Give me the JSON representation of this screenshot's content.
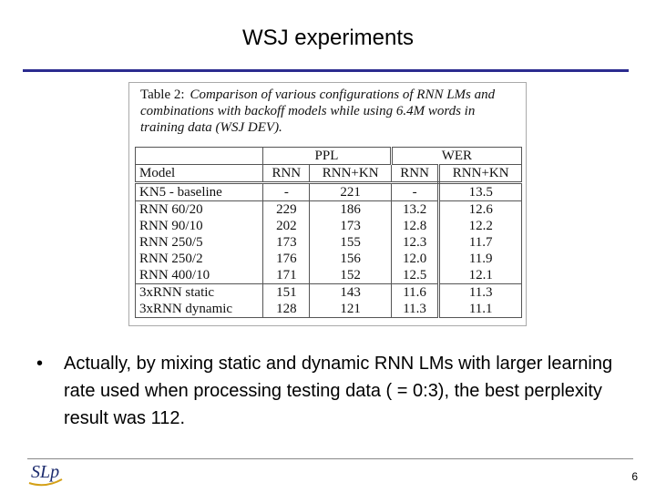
{
  "header": {
    "title": "WSJ experiments"
  },
  "table": {
    "caption_label": "Table 2:",
    "caption": "Comparison of various configurations of RNN LMs and combinations with backoff models while using 6.4M words in training data (WSJ DEV).",
    "groups": [
      "PPL",
      "WER"
    ],
    "columns": [
      "Model",
      "RNN",
      "RNN+KN",
      "RNN",
      "RNN+KN"
    ],
    "rows": [
      [
        "KN5 - baseline",
        "-",
        "221",
        "-",
        "13.5"
      ],
      [
        "RNN 60/20",
        "229",
        "186",
        "13.2",
        "12.6"
      ],
      [
        "RNN 90/10",
        "202",
        "173",
        "12.8",
        "12.2"
      ],
      [
        "RNN 250/5",
        "173",
        "155",
        "12.3",
        "11.7"
      ],
      [
        "RNN 250/2",
        "176",
        "156",
        "12.0",
        "11.9"
      ],
      [
        "RNN 400/10",
        "171",
        "152",
        "12.5",
        "12.1"
      ],
      [
        "3xRNN static",
        "151",
        "143",
        "11.6",
        "11.3"
      ],
      [
        "3xRNN dynamic",
        "128",
        "121",
        "11.3",
        "11.1"
      ]
    ]
  },
  "body": {
    "bullets": [
      "Actually, by mixing static and dynamic RNN LMs with larger learning rate used when processing testing data ( = 0:3), the best perplexity result was 112."
    ]
  },
  "footer": {
    "logo": "SLp",
    "page_number": "6"
  }
}
